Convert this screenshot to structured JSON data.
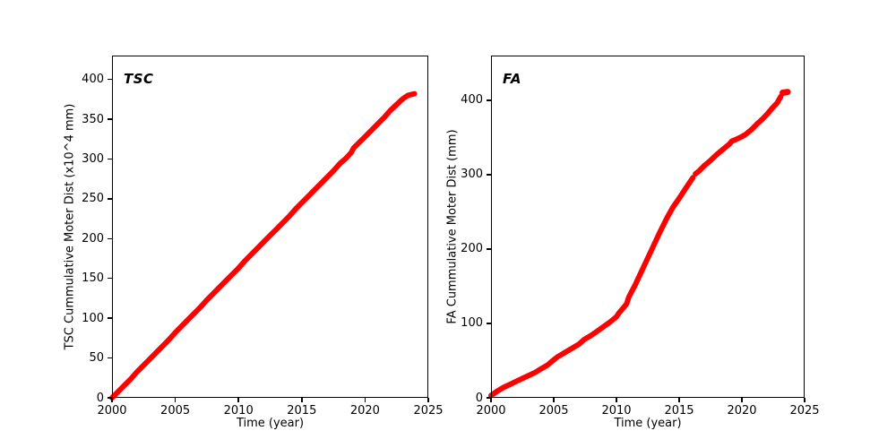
{
  "figure": {
    "background": "#ffffff",
    "accent_color": "#ff0000"
  },
  "chart_data": [
    {
      "id": "tsc",
      "type": "scatter",
      "annotation": "TSC",
      "xlabel": "Time (year)",
      "ylabel": "TSC Cummulative Moter Dist (x10^4 mm)",
      "xlim": [
        2000,
        2025
      ],
      "ylim": [
        0,
        430
      ],
      "xticks": [
        2000,
        2005,
        2010,
        2015,
        2020,
        2025
      ],
      "yticks": [
        0,
        50,
        100,
        150,
        200,
        250,
        300,
        350,
        400
      ],
      "grid": false,
      "legend": "none",
      "color": "#ff0000",
      "marker": "circle",
      "series": [
        {
          "name": "tsc-cumulative-distance",
          "stroke_width": 6,
          "segments": [
            [
              [
                2000.0,
                0
              ],
              [
                2000.5,
                8
              ],
              [
                2001.0,
                16
              ],
              [
                2001.5,
                24
              ],
              [
                2002.0,
                33
              ],
              [
                2002.5,
                41
              ],
              [
                2003.0,
                49
              ],
              [
                2003.5,
                57
              ],
              [
                2004.0,
                65
              ],
              [
                2004.5,
                73
              ],
              [
                2005.0,
                82
              ],
              [
                2005.5,
                90
              ],
              [
                2006.0,
                98
              ],
              [
                2006.5,
                106
              ],
              [
                2007.0,
                114
              ],
              [
                2007.5,
                123
              ],
              [
                2008.0,
                131
              ],
              [
                2008.5,
                139
              ],
              [
                2009.0,
                147
              ],
              [
                2009.5,
                155
              ],
              [
                2010.0,
                163
              ],
              [
                2010.5,
                172
              ],
              [
                2011.0,
                180
              ],
              [
                2011.5,
                188
              ],
              [
                2012.0,
                196
              ],
              [
                2012.5,
                204
              ],
              [
                2013.0,
                212
              ],
              [
                2013.5,
                220
              ],
              [
                2014.0,
                228
              ],
              [
                2014.5,
                237
              ],
              [
                2015.0,
                245
              ],
              [
                2015.5,
                253
              ],
              [
                2016.0,
                261
              ],
              [
                2016.5,
                269
              ],
              [
                2017.0,
                277
              ],
              [
                2017.5,
                285
              ],
              [
                2018.0,
                294
              ],
              [
                2018.5,
                301
              ],
              [
                2018.9,
                308
              ],
              [
                2019.1,
                314
              ],
              [
                2019.3,
                317
              ],
              [
                2020.0,
                328
              ],
              [
                2020.5,
                336
              ],
              [
                2021.0,
                344
              ],
              [
                2021.5,
                352
              ],
              [
                2022.0,
                361
              ],
              [
                2022.4,
                367
              ],
              [
                2022.8,
                373
              ],
              [
                2023.1,
                377
              ],
              [
                2023.4,
                380
              ],
              [
                2023.9,
                382
              ]
            ]
          ]
        }
      ]
    },
    {
      "id": "fa",
      "type": "scatter",
      "annotation": "FA",
      "xlabel": "Time (year)",
      "ylabel": "FA Cummulative Moter Dist (mm)",
      "xlim": [
        2000,
        2025
      ],
      "ylim": [
        0,
        460
      ],
      "xticks": [
        2000,
        2005,
        2010,
        2015,
        2020,
        2025
      ],
      "yticks": [
        0,
        100,
        200,
        300,
        400
      ],
      "grid": false,
      "legend": "none",
      "color": "#ff0000",
      "marker": "circle",
      "series": [
        {
          "name": "fa-cumulative-distance",
          "stroke_width": 6,
          "segments": [
            [
              [
                2000.0,
                3
              ],
              [
                2000.5,
                9
              ],
              [
                2001.0,
                14
              ],
              [
                2001.5,
                18
              ],
              [
                2002.0,
                22
              ],
              [
                2002.5,
                26
              ],
              [
                2003.0,
                30
              ],
              [
                2003.5,
                34
              ],
              [
                2004.0,
                39
              ],
              [
                2004.5,
                44
              ],
              [
                2005.0,
                51
              ],
              [
                2005.3,
                55
              ],
              [
                2005.8,
                60
              ],
              [
                2006.3,
                65
              ],
              [
                2007.0,
                72
              ],
              [
                2007.4,
                78
              ],
              [
                2008.0,
                84
              ],
              [
                2008.5,
                90
              ],
              [
                2009.0,
                96
              ],
              [
                2009.5,
                102
              ],
              [
                2010.0,
                109
              ],
              [
                2010.2,
                114
              ],
              [
                2010.5,
                120
              ],
              [
                2010.8,
                126
              ],
              [
                2011.0,
                136
              ],
              [
                2011.5,
                152
              ],
              [
                2012.0,
                170
              ],
              [
                2012.5,
                188
              ],
              [
                2013.0,
                206
              ],
              [
                2013.5,
                224
              ],
              [
                2014.0,
                241
              ],
              [
                2014.5,
                256
              ],
              [
                2015.0,
                268
              ],
              [
                2015.5,
                281
              ],
              [
                2015.9,
                291
              ],
              [
                2016.1,
                296
              ]
            ],
            [
              [
                2016.3,
                301
              ],
              [
                2016.6,
                305
              ],
              [
                2017.0,
                312
              ],
              [
                2017.5,
                319
              ],
              [
                2018.0,
                327
              ],
              [
                2018.5,
                334
              ],
              [
                2019.0,
                341
              ],
              [
                2019.2,
                345
              ],
              [
                2019.5,
                347
              ],
              [
                2020.0,
                351
              ],
              [
                2020.3,
                354
              ],
              [
                2020.8,
                361
              ],
              [
                2021.2,
                368
              ],
              [
                2021.6,
                374
              ],
              [
                2022.0,
                381
              ],
              [
                2022.4,
                389
              ],
              [
                2022.8,
                396
              ],
              [
                2023.0,
                402
              ],
              [
                2023.1,
                405
              ]
            ],
            [
              [
                2023.25,
                410
              ],
              [
                2023.65,
                411
              ]
            ]
          ]
        }
      ]
    }
  ]
}
